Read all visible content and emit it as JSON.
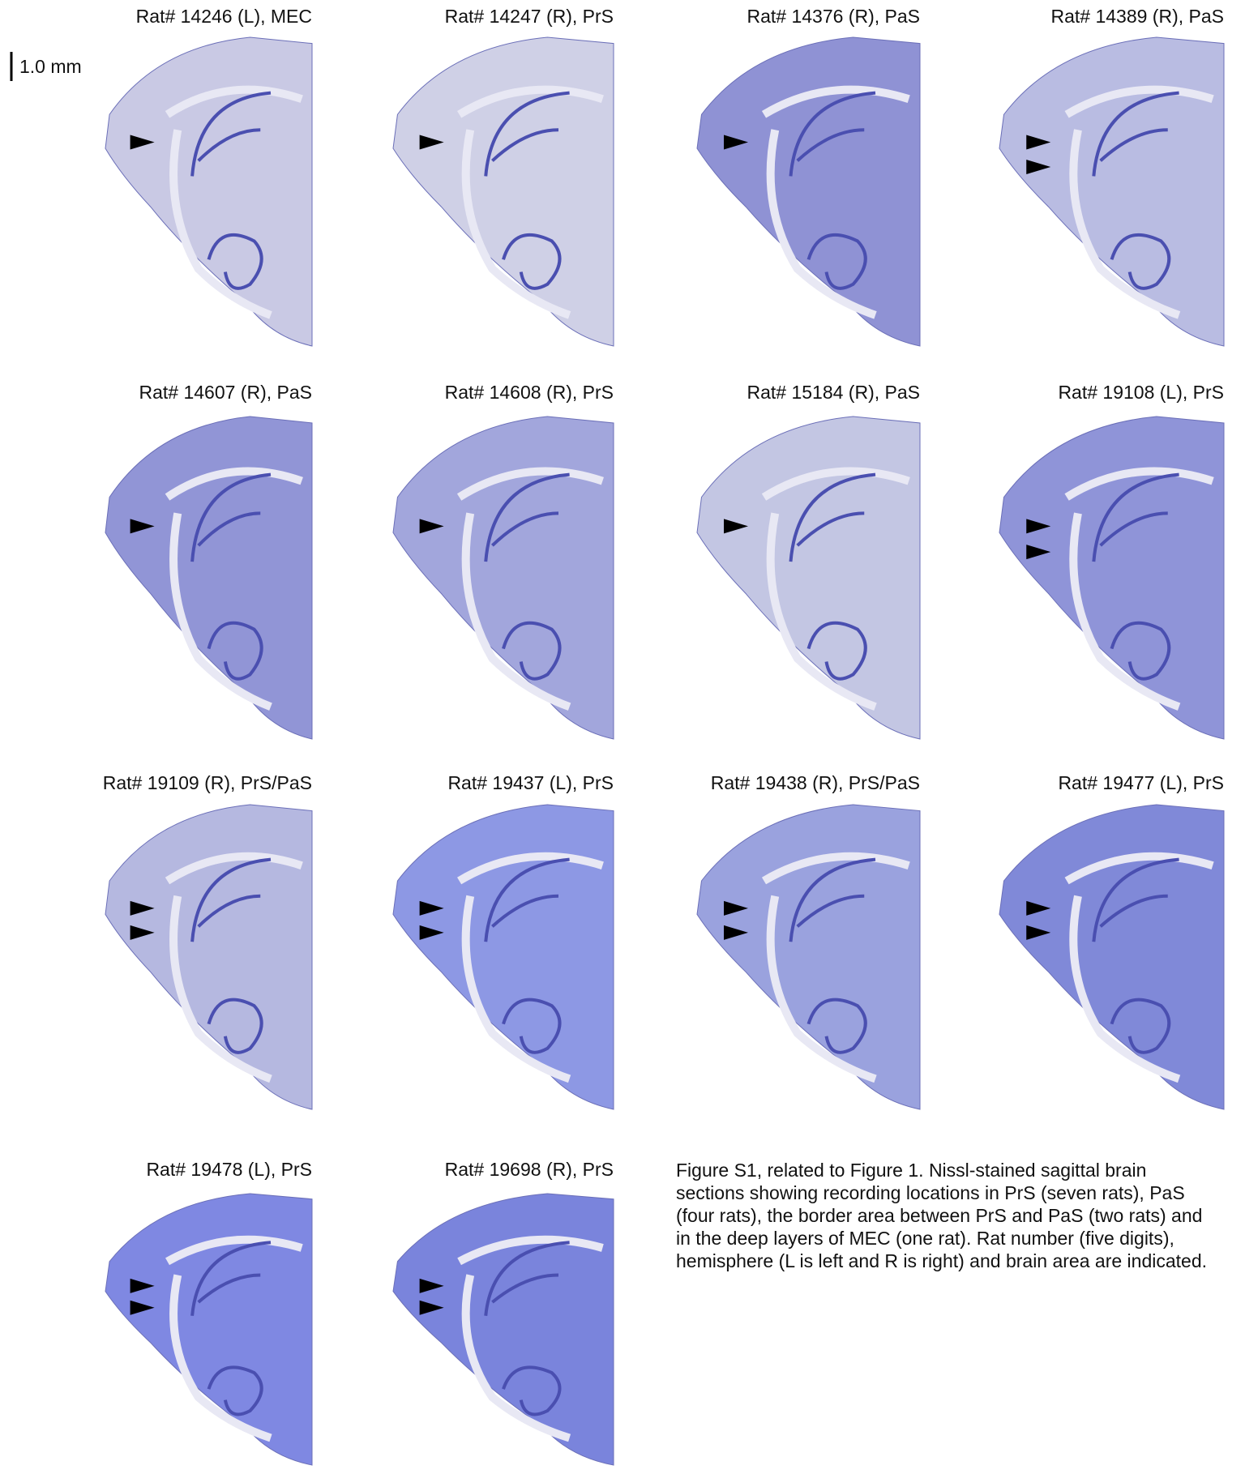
{
  "scale_bar": "1.0 mm",
  "panels": [
    "Rat# 14246 (L), MEC",
    "Rat# 14247 (R), PrS",
    "Rat# 14376 (R), PaS",
    "Rat# 14389 (R), PaS",
    "Rat# 14607 (R), PaS",
    "Rat# 14608 (R), PrS",
    "Rat# 15184 (R), PaS",
    "Rat# 19108 (L), PrS",
    "Rat# 19109 (R), PrS/PaS",
    "Rat# 19437 (L), PrS",
    "Rat# 19438 (R), PrS/PaS",
    "Rat# 19477 (L), PrS",
    "Rat# 19478 (L), PrS",
    "Rat# 19698 (R), PrS"
  ],
  "caption": "Figure S1, related to Figure 1. Nissl-stained sagittal brain sections showing recording locations in PrS (seven rats), PaS (four rats), the border area between PrS and PaS (two rats) and in the deep layers of MEC (one rat). Rat number (five digits), hemisphere (L is left and R is right) and brain area are indicated."
}
